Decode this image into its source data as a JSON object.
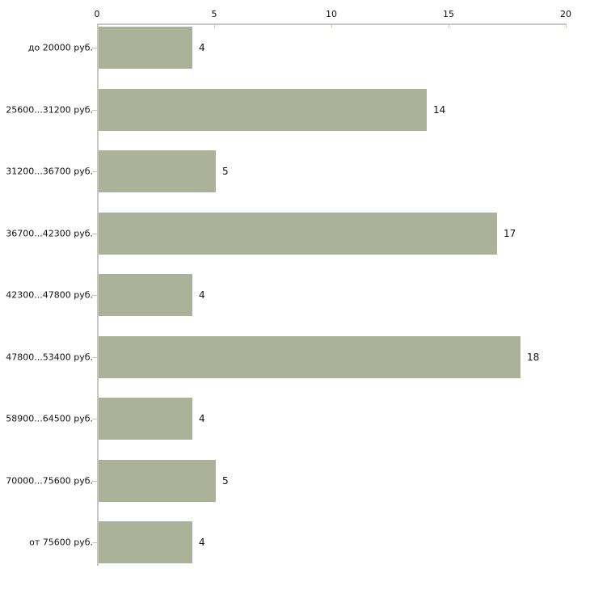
{
  "chart_data": {
    "type": "bar",
    "orientation": "horizontal",
    "title": "",
    "categories": [
      "до 20000 руб.",
      "25600...31200 руб.",
      "31200...36700 руб.",
      "36700...42300 руб.",
      "42300...47800 руб.",
      "47800...53400 руб.",
      "58900...64500 руб.",
      "70000...75600 руб.",
      "от 75600 руб."
    ],
    "values": [
      4,
      14,
      5,
      17,
      4,
      18,
      4,
      5,
      4
    ],
    "value_labels": [
      "4",
      "14",
      "5",
      "17",
      "4",
      "18",
      "4",
      "5",
      "4"
    ],
    "xlabel": "",
    "ylabel": "",
    "xlim": [
      0,
      20
    ],
    "x_ticks": [
      0,
      5,
      10,
      15,
      20
    ],
    "x_axis_position": "top",
    "grid": false,
    "legend": "none",
    "colors": {
      "bar": "#acb199",
      "axis_line": "#c6c6c6",
      "tick_mark": "#c9cba1",
      "text": "#111111"
    }
  }
}
